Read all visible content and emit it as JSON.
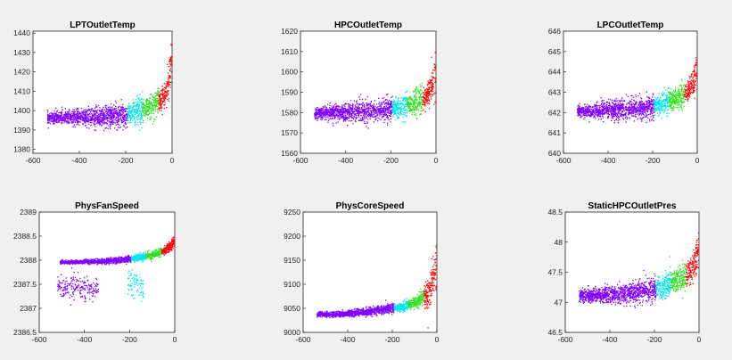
{
  "series_colors": {
    "far": "#8000ff",
    "mid1": "#00e5ee",
    "mid2": "#30e020",
    "near": "#ff0000"
  },
  "chart_data": [
    {
      "type": "scatter",
      "title": "LPTOutletTemp",
      "xlim": [
        -600,
        0
      ],
      "ylim": [
        1378,
        1441
      ],
      "xticks": [
        -600,
        -400,
        -200,
        0
      ],
      "yticks": [
        1380,
        1390,
        1400,
        1410,
        1420,
        1430,
        1440
      ],
      "grid": false,
      "bands": [
        {
          "key": "far",
          "x_range": [
            -540,
            -195
          ],
          "y_center_start": 1396.5,
          "y_center_end": 1398,
          "spread": 4.5
        },
        {
          "key": "mid1",
          "x_range": [
            -195,
            -130
          ],
          "y_center_start": 1399,
          "y_center_end": 1401,
          "spread": 6.5
        },
        {
          "key": "mid2",
          "x_range": [
            -130,
            -60
          ],
          "y_center_start": 1401,
          "y_center_end": 1406,
          "spread": 6
        },
        {
          "key": "near",
          "x_range": [
            -60,
            0
          ],
          "y_center_start": 1405,
          "y_center_end": 1426,
          "spread": 8
        }
      ]
    },
    {
      "type": "scatter",
      "title": "HPCOutletTemp",
      "xlim": [
        -600,
        0
      ],
      "ylim": [
        1560,
        1620
      ],
      "xticks": [
        -600,
        -400,
        -200,
        0
      ],
      "yticks": [
        1560,
        1570,
        1580,
        1590,
        1600,
        1610,
        1620
      ],
      "grid": false,
      "bands": [
        {
          "key": "far",
          "x_range": [
            -540,
            -195
          ],
          "y_center_start": 1580,
          "y_center_end": 1582,
          "spread": 4.5
        },
        {
          "key": "mid1",
          "x_range": [
            -195,
            -130
          ],
          "y_center_start": 1582.5,
          "y_center_end": 1584,
          "spread": 6
        },
        {
          "key": "mid2",
          "x_range": [
            -130,
            -60
          ],
          "y_center_start": 1584,
          "y_center_end": 1587,
          "spread": 6
        },
        {
          "key": "near",
          "x_range": [
            -60,
            0
          ],
          "y_center_start": 1587,
          "y_center_end": 1602,
          "spread": 7
        }
      ]
    },
    {
      "type": "scatter",
      "title": "LPCOutletTemp",
      "xlim": [
        -600,
        0
      ],
      "ylim": [
        640,
        646
      ],
      "xticks": [
        -600,
        -400,
        -200,
        0
      ],
      "yticks": [
        640,
        641,
        642,
        643,
        644,
        645,
        646
      ],
      "grid": false,
      "bands": [
        {
          "key": "far",
          "x_range": [
            -540,
            -195
          ],
          "y_center_start": 642.1,
          "y_center_end": 642.3,
          "spread": 0.45
        },
        {
          "key": "mid1",
          "x_range": [
            -195,
            -130
          ],
          "y_center_start": 642.4,
          "y_center_end": 642.6,
          "spread": 0.55
        },
        {
          "key": "mid2",
          "x_range": [
            -130,
            -60
          ],
          "y_center_start": 642.6,
          "y_center_end": 643.0,
          "spread": 0.55
        },
        {
          "key": "near",
          "x_range": [
            -60,
            0
          ],
          "y_center_start": 643.0,
          "y_center_end": 644.3,
          "spread": 0.6
        }
      ]
    },
    {
      "type": "scatter",
      "title": "PhysFanSpeed",
      "xlim": [
        -600,
        0
      ],
      "ylim": [
        2386.5,
        2389
      ],
      "xticks": [
        -600,
        -400,
        -200,
        0
      ],
      "yticks": [
        2386.5,
        2387,
        2387.5,
        2388,
        2388.5,
        2389
      ],
      "grid": false,
      "bands": [
        {
          "key": "far",
          "x_range": [
            -510,
            -195
          ],
          "y_center_start": 2387.97,
          "y_center_end": 2388.03,
          "spread": 0.05
        },
        {
          "key": "mid1",
          "x_range": [
            -195,
            -130
          ],
          "y_center_start": 2388.05,
          "y_center_end": 2388.1,
          "spread": 0.07
        },
        {
          "key": "mid2",
          "x_range": [
            -130,
            -60
          ],
          "y_center_start": 2388.1,
          "y_center_end": 2388.2,
          "spread": 0.08
        },
        {
          "key": "near",
          "x_range": [
            -60,
            0
          ],
          "y_center_start": 2388.2,
          "y_center_end": 2388.45,
          "spread": 0.1
        }
      ],
      "clusters": [
        {
          "key": "far",
          "x_range": [
            -520,
            -340
          ],
          "y_center": 2387.45,
          "spread": 0.25
        },
        {
          "key": "mid1",
          "x_range": [
            -210,
            -140
          ],
          "y_center": 2387.5,
          "spread": 0.3
        }
      ]
    },
    {
      "type": "scatter",
      "title": "PhysCoreSpeed",
      "xlim": [
        -600,
        0
      ],
      "ylim": [
        9000,
        9250
      ],
      "xticks": [
        -600,
        -400,
        -200,
        0
      ],
      "yticks": [
        9000,
        9050,
        9100,
        9150,
        9200,
        9250
      ],
      "grid": false,
      "bands": [
        {
          "key": "far",
          "x_range": [
            -540,
            -195
          ],
          "y_center_start": 9038,
          "y_center_end": 9052,
          "spread": 7
        },
        {
          "key": "mid1",
          "x_range": [
            -195,
            -130
          ],
          "y_center_start": 9052,
          "y_center_end": 9060,
          "spread": 9
        },
        {
          "key": "mid2",
          "x_range": [
            -130,
            -60
          ],
          "y_center_start": 9060,
          "y_center_end": 9078,
          "spread": 12
        },
        {
          "key": "near",
          "x_range": [
            -60,
            0
          ],
          "y_center_start": 9075,
          "y_center_end": 9160,
          "spread": 35
        }
      ]
    },
    {
      "type": "scatter",
      "title": "StaticHPCOutletPres",
      "xlim": [
        -600,
        0
      ],
      "ylim": [
        46.5,
        48.5
      ],
      "xticks": [
        -600,
        -400,
        -200,
        0
      ],
      "yticks": [
        46.5,
        47,
        47.5,
        48,
        48.5
      ],
      "grid": false,
      "bands": [
        {
          "key": "far",
          "x_range": [
            -540,
            -195
          ],
          "y_center_start": 47.12,
          "y_center_end": 47.22,
          "spread": 0.15
        },
        {
          "key": "mid1",
          "x_range": [
            -195,
            -130
          ],
          "y_center_start": 47.25,
          "y_center_end": 47.35,
          "spread": 0.2
        },
        {
          "key": "mid2",
          "x_range": [
            -130,
            -60
          ],
          "y_center_start": 47.35,
          "y_center_end": 47.5,
          "spread": 0.2
        },
        {
          "key": "near",
          "x_range": [
            -60,
            0
          ],
          "y_center_start": 47.5,
          "y_center_end": 47.95,
          "spread": 0.25
        }
      ]
    }
  ]
}
